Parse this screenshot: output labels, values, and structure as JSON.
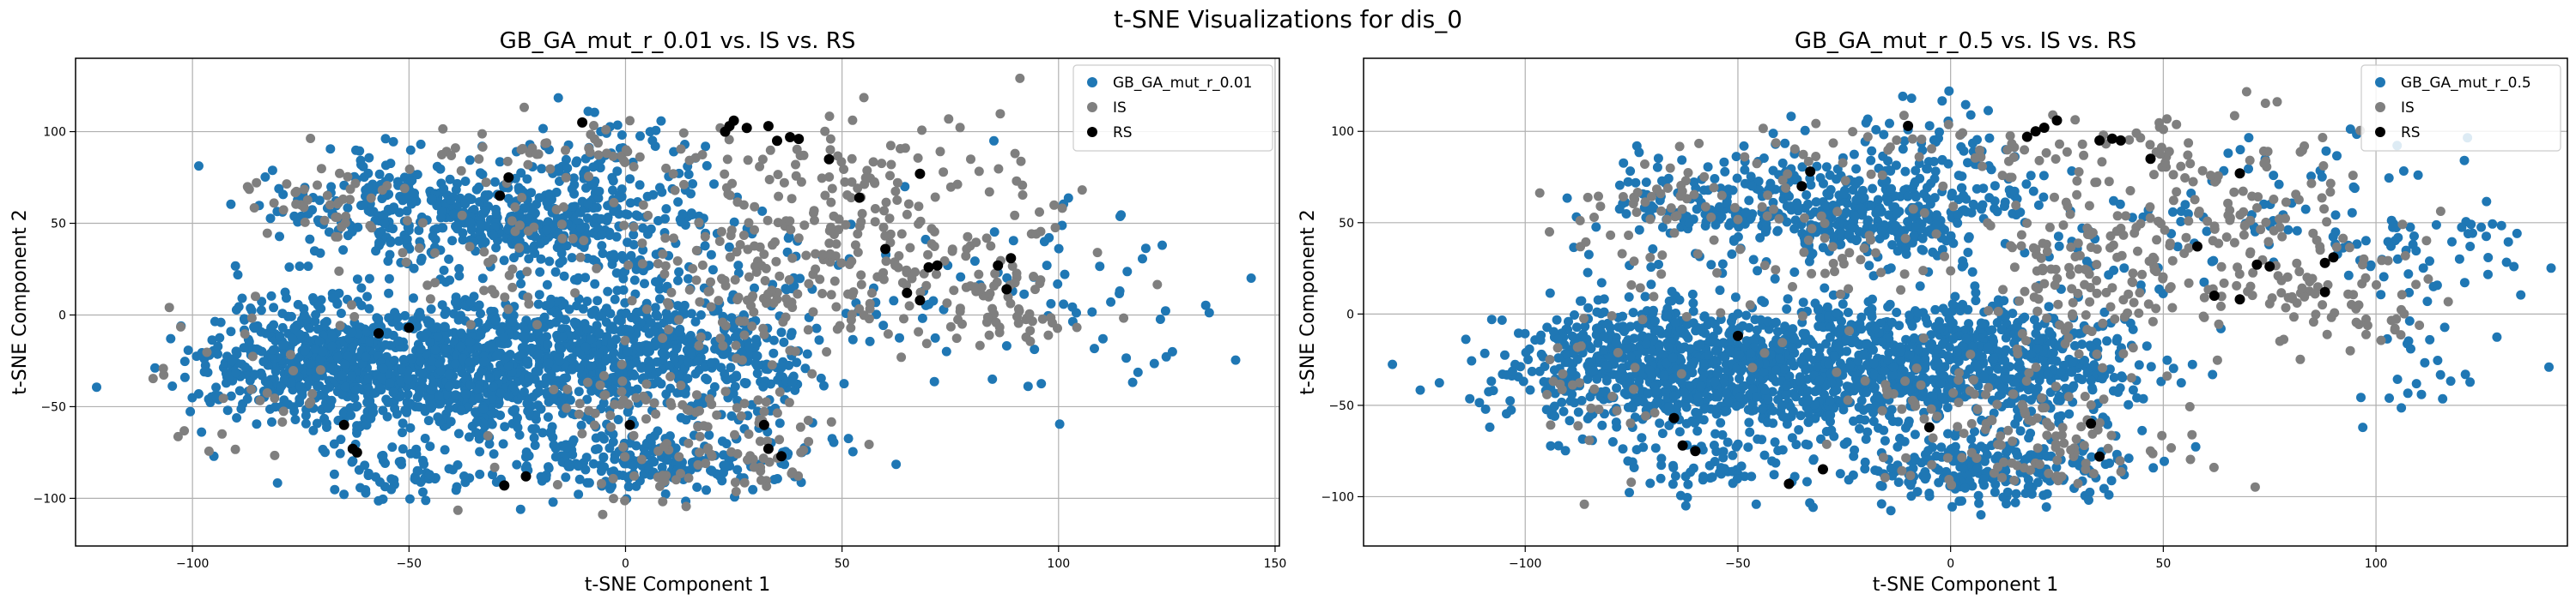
{
  "suptitle": "t-SNE Visualizations for dis_0",
  "colors": {
    "GB": "#1f77b4",
    "IS": "#7f7f7f",
    "RS": "#000000"
  },
  "chart_data": [
    {
      "type": "scatter",
      "title": "GB_GA_mut_r_0.01 vs. IS vs. RS",
      "xlabel": "t-SNE Component 1",
      "ylabel": "t-SNE Component 2",
      "xlim": [
        -127,
        151
      ],
      "ylim": [
        -126,
        140
      ],
      "xticks": [
        -100,
        -50,
        0,
        50,
        100,
        150
      ],
      "yticks": [
        -100,
        -50,
        0,
        50,
        100
      ],
      "grid": true,
      "legend_position": "upper right",
      "series": [
        {
          "name": "GB_GA_mut_r_0.01",
          "color": "#1f77b4",
          "clusters": [
            {
              "c": [
                -35,
                -30
              ],
              "s": [
                25,
                18
              ],
              "n": 950
            },
            {
              "c": [
                -70,
                -25
              ],
              "s": [
                12,
                18
              ],
              "n": 350
            },
            {
              "c": [
                -5,
                -15
              ],
              "s": [
                15,
                15
              ],
              "n": 300
            },
            {
              "c": [
                -25,
                50
              ],
              "s": [
                15,
                10
              ],
              "n": 260
            },
            {
              "c": [
                -60,
                55
              ],
              "s": [
                12,
                15
              ],
              "n": 110
            },
            {
              "c": [
                5,
                -80
              ],
              "s": [
                18,
                10
              ],
              "n": 230
            },
            {
              "c": [
                28,
                -25
              ],
              "s": [
                10,
                15
              ],
              "n": 150
            },
            {
              "c": [
                -50,
                -85
              ],
              "s": [
                10,
                8
              ],
              "n": 60
            },
            {
              "c": [
                -5,
                75
              ],
              "s": [
                12,
                20
              ],
              "n": 120
            },
            {
              "c": [
                -45,
                70
              ],
              "s": [
                18,
                12
              ],
              "n": 80
            },
            {
              "c": [
                5,
                30
              ],
              "s": [
                15,
                15
              ],
              "n": 80
            },
            {
              "c": [
                90,
                20
              ],
              "s": [
                20,
                30
              ],
              "n": 40
            },
            {
              "c": [
                115,
                -5
              ],
              "s": [
                15,
                25
              ],
              "n": 30
            },
            {
              "c": [
                -95,
                -30
              ],
              "s": [
                8,
                20
              ],
              "n": 35
            },
            {
              "c": [
                40,
                10
              ],
              "s": [
                20,
                20
              ],
              "n": 40
            }
          ]
        },
        {
          "name": "IS",
          "color": "#7f7f7f",
          "clusters": [
            {
              "c": [
                55,
                60
              ],
              "s": [
                20,
                25
              ],
              "n": 160
            },
            {
              "c": [
                30,
                15
              ],
              "s": [
                15,
                25
              ],
              "n": 120
            },
            {
              "c": [
                80,
                15
              ],
              "s": [
                15,
                15
              ],
              "n": 70
            },
            {
              "c": [
                -5,
                90
              ],
              "s": [
                25,
                8
              ],
              "n": 50
            },
            {
              "c": [
                15,
                -85
              ],
              "s": [
                20,
                10
              ],
              "n": 60
            },
            {
              "c": [
                -30,
                40
              ],
              "s": [
                25,
                25
              ],
              "n": 70
            },
            {
              "c": [
                -70,
                60
              ],
              "s": [
                10,
                10
              ],
              "n": 40
            },
            {
              "c": [
                0,
                -45
              ],
              "s": [
                15,
                10
              ],
              "n": 40
            },
            {
              "c": [
                -85,
                -40
              ],
              "s": [
                10,
                25
              ],
              "n": 30
            },
            {
              "c": [
                95,
                -5
              ],
              "s": [
                8,
                6
              ],
              "n": 20
            },
            {
              "c": [
                20,
                -60
              ],
              "s": [
                15,
                8
              ],
              "n": 30
            }
          ]
        },
        {
          "name": "RS",
          "color": "#000000",
          "points": [
            [
              -65,
              -60
            ],
            [
              -63,
              -73
            ],
            [
              -62,
              -75
            ],
            [
              -57,
              -10
            ],
            [
              -50,
              -7
            ],
            [
              -28,
              -93
            ],
            [
              -23,
              -88
            ],
            [
              -29,
              65
            ],
            [
              -27,
              75
            ],
            [
              -10,
              105
            ],
            [
              1,
              -60
            ],
            [
              23,
              100
            ],
            [
              24,
              103
            ],
            [
              25,
              106
            ],
            [
              28,
              102
            ],
            [
              33,
              103
            ],
            [
              35,
              95
            ],
            [
              38,
              97
            ],
            [
              40,
              96
            ],
            [
              47,
              85
            ],
            [
              54,
              64
            ],
            [
              60,
              36
            ],
            [
              65,
              12
            ],
            [
              68,
              77
            ],
            [
              68,
              8
            ],
            [
              70,
              26
            ],
            [
              72,
              27
            ],
            [
              86,
              27
            ],
            [
              89,
              31
            ],
            [
              36,
              -77
            ],
            [
              33,
              -73
            ],
            [
              32,
              -60
            ],
            [
              88,
              14
            ]
          ]
        }
      ]
    },
    {
      "type": "scatter",
      "title": "GB_GA_mut_r_0.5 vs. IS vs. RS",
      "xlabel": "t-SNE Component 1",
      "ylabel": "t-SNE Component 2",
      "xlim": [
        -138,
        145
      ],
      "ylim": [
        -127,
        140
      ],
      "xticks": [
        -100,
        -50,
        0,
        50,
        100
      ],
      "yticks": [
        -100,
        -50,
        0,
        50,
        100
      ],
      "grid": true,
      "legend_position": "upper right",
      "series": [
        {
          "name": "GB_GA_mut_r_0.5",
          "color": "#1f77b4",
          "clusters": [
            {
              "c": [
                -35,
                -30
              ],
              "s": [
                25,
                18
              ],
              "n": 950
            },
            {
              "c": [
                -75,
                -25
              ],
              "s": [
                12,
                18
              ],
              "n": 350
            },
            {
              "c": [
                5,
                -20
              ],
              "s": [
                15,
                15
              ],
              "n": 280
            },
            {
              "c": [
                -20,
                50
              ],
              "s": [
                15,
                10
              ],
              "n": 250
            },
            {
              "c": [
                -55,
                60
              ],
              "s": [
                12,
                15
              ],
              "n": 110
            },
            {
              "c": [
                10,
                -85
              ],
              "s": [
                18,
                10
              ],
              "n": 230
            },
            {
              "c": [
                25,
                -30
              ],
              "s": [
                10,
                15
              ],
              "n": 150
            },
            {
              "c": [
                -55,
                -85
              ],
              "s": [
                10,
                8
              ],
              "n": 60
            },
            {
              "c": [
                -5,
                75
              ],
              "s": [
                12,
                20
              ],
              "n": 120
            },
            {
              "c": [
                -40,
                70
              ],
              "s": [
                18,
                12
              ],
              "n": 80
            },
            {
              "c": [
                90,
                60
              ],
              "s": [
                20,
                30
              ],
              "n": 60
            },
            {
              "c": [
                115,
                20
              ],
              "s": [
                12,
                25
              ],
              "n": 50
            },
            {
              "c": [
                -100,
                -30
              ],
              "s": [
                8,
                20
              ],
              "n": 30
            },
            {
              "c": [
                40,
                40
              ],
              "s": [
                20,
                25
              ],
              "n": 50
            },
            {
              "c": [
                110,
                -40
              ],
              "s": [
                10,
                15
              ],
              "n": 15
            }
          ]
        },
        {
          "name": "IS",
          "color": "#7f7f7f",
          "clusters": [
            {
              "c": [
                55,
                60
              ],
              "s": [
                20,
                25
              ],
              "n": 150
            },
            {
              "c": [
                30,
                15
              ],
              "s": [
                15,
                25
              ],
              "n": 120
            },
            {
              "c": [
                80,
                15
              ],
              "s": [
                15,
                15
              ],
              "n": 70
            },
            {
              "c": [
                -5,
                90
              ],
              "s": [
                25,
                8
              ],
              "n": 50
            },
            {
              "c": [
                20,
                -80
              ],
              "s": [
                20,
                10
              ],
              "n": 60
            },
            {
              "c": [
                -35,
                40
              ],
              "s": [
                25,
                25
              ],
              "n": 70
            },
            {
              "c": [
                -70,
                60
              ],
              "s": [
                10,
                10
              ],
              "n": 40
            },
            {
              "c": [
                0,
                -45
              ],
              "s": [
                15,
                10
              ],
              "n": 40
            },
            {
              "c": [
                -85,
                -40
              ],
              "s": [
                10,
                25
              ],
              "n": 30
            },
            {
              "c": [
                95,
                -5
              ],
              "s": [
                8,
                6
              ],
              "n": 20
            },
            {
              "c": [
                25,
                -60
              ],
              "s": [
                15,
                8
              ],
              "n": 30
            }
          ]
        },
        {
          "name": "RS",
          "color": "#000000",
          "points": [
            [
              -65,
              -57
            ],
            [
              -63,
              -72
            ],
            [
              -60,
              -75
            ],
            [
              -50,
              -12
            ],
            [
              -38,
              -93
            ],
            [
              -30,
              -85
            ],
            [
              -35,
              70
            ],
            [
              -33,
              78
            ],
            [
              -10,
              103
            ],
            [
              -5,
              -62
            ],
            [
              22,
              102
            ],
            [
              25,
              106
            ],
            [
              18,
              97
            ],
            [
              35,
              95
            ],
            [
              38,
              96
            ],
            [
              40,
              95
            ],
            [
              47,
              85
            ],
            [
              58,
              37
            ],
            [
              62,
              10
            ],
            [
              68,
              77
            ],
            [
              68,
              8
            ],
            [
              72,
              27
            ],
            [
              75,
              26
            ],
            [
              88,
              28
            ],
            [
              90,
              31
            ],
            [
              35,
              -78
            ],
            [
              33,
              -60
            ],
            [
              88,
              12
            ],
            [
              20,
              100
            ]
          ]
        }
      ]
    }
  ]
}
